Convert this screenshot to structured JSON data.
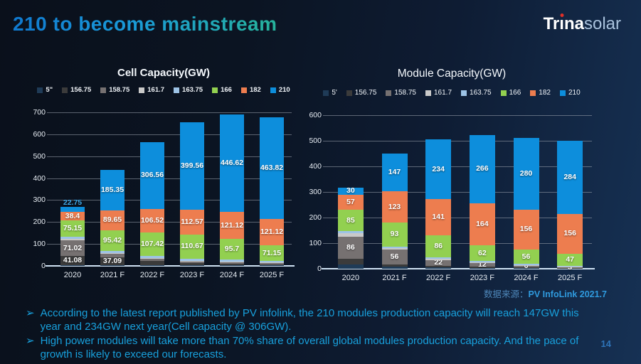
{
  "slide": {
    "title": "210 to become mainstream",
    "page_number": "14",
    "bullet_icon": "➢",
    "logo": {
      "seg1": "Tr",
      "seg2": "ı",
      "seg3": "na",
      "suffix": "solar"
    },
    "source": {
      "prefix": "数据来源：",
      "value": "PV InfoLink 2021.7"
    },
    "bullets": [
      "According to the latest report published by PV infolink, the 210 modules production capacity will reach 147GW this year and 234GW next year(Cell capacity @ 306GW).",
      "High power modules will take more than 70% share of overall global modules production capacity. And the pace of growth is likely to exceed our forecasts."
    ]
  },
  "colors": {
    "accent_blue": "#0d8edc",
    "title_gradient_start": "#1079d0",
    "title_gradient_end": "#27b39b",
    "bullet_text": "#18a0dc",
    "logo_dot_red": "#e03028"
  },
  "chart_data": [
    {
      "type": "bar",
      "stacked": true,
      "title": "Cell Capacity(GW)",
      "categories": [
        "2020",
        "2021 F",
        "2022 F",
        "2023 F",
        "2024 F",
        "2025 F"
      ],
      "ylim": [
        0,
        700
      ],
      "ytick_step": 100,
      "grid": true,
      "legend_position": "top",
      "series": [
        {
          "name": "5\"",
          "color": "#1f3b57",
          "values": [
            3,
            3,
            2,
            2,
            2,
            2
          ],
          "labels": [
            "",
            "",
            "",
            "",
            "",
            ""
          ]
        },
        {
          "name": "156.75",
          "color": "#3b3b3b",
          "values": [
            41.08,
            37.09,
            20,
            11,
            8,
            6
          ],
          "labels": [
            "41.08",
            "37.09",
            "",
            "",
            "",
            ""
          ]
        },
        {
          "name": "158.75",
          "color": "#767171",
          "values": [
            71.02,
            14,
            10,
            8,
            7,
            5
          ],
          "labels": [
            "71.02",
            "",
            "",
            "",
            "",
            ""
          ]
        },
        {
          "name": "161.7",
          "color": "#c9c9c9",
          "values": [
            8,
            5,
            4,
            3,
            3,
            3
          ],
          "labels": [
            "",
            "",
            "",
            "",
            "",
            ""
          ]
        },
        {
          "name": "163.75",
          "color": "#9dc3e6",
          "values": [
            9,
            9,
            9,
            9,
            8,
            6
          ],
          "labels": [
            "",
            "",
            "",
            "",
            "",
            ""
          ]
        },
        {
          "name": "166",
          "color": "#92d050",
          "values": [
            75.15,
            95.42,
            107.42,
            110.67,
            95.7,
            71.15
          ],
          "labels": [
            "75.15",
            "95.42",
            "107.42",
            "110.67",
            "95.7",
            "71.15"
          ]
        },
        {
          "name": "182",
          "color": "#ed7d4f",
          "values": [
            38.4,
            89.65,
            106.52,
            112.57,
            121.12,
            121.12
          ],
          "labels": [
            "38.4",
            "89.65",
            "106.52",
            "112.57",
            "121.12",
            "121.12"
          ]
        },
        {
          "name": "210",
          "color": "#0d8edc",
          "values": [
            22.75,
            185.35,
            306.56,
            399.56,
            446.62,
            463.82
          ],
          "labels": [
            "22.75",
            "185.35",
            "306.56",
            "399.56",
            "446.62",
            "463.82"
          ]
        }
      ]
    },
    {
      "type": "bar",
      "stacked": true,
      "title": "Module Capacity(GW)",
      "categories": [
        "2020",
        "2021 F",
        "2022 F",
        "2023 F",
        "2024 F",
        "2025 F"
      ],
      "ylim": [
        0,
        600
      ],
      "ytick_step": 100,
      "grid": true,
      "legend_position": "top",
      "series": [
        {
          "name": "5'",
          "color": "#1f3b57",
          "values": [
            18,
            8,
            5,
            4,
            3,
            2
          ],
          "labels": [
            "",
            "",
            "",
            "",
            "",
            ""
          ]
        },
        {
          "name": "156.75",
          "color": "#3b3b3b",
          "values": [
            20,
            10,
            7,
            5,
            3,
            2
          ],
          "labels": [
            "",
            "",
            "",
            "",
            "",
            ""
          ]
        },
        {
          "name": "158.75",
          "color": "#767171",
          "values": [
            86,
            56,
            22,
            12,
            6,
            3
          ],
          "labels": [
            "86",
            "56",
            "22",
            "12",
            "6",
            "3"
          ]
        },
        {
          "name": "161.7",
          "color": "#c9c9c9",
          "values": [
            14,
            6,
            4,
            3,
            2,
            1
          ],
          "labels": [
            "",
            "",
            "",
            "",
            "",
            ""
          ]
        },
        {
          "name": "163.75",
          "color": "#9dc3e6",
          "values": [
            8,
            7,
            6,
            6,
            5,
            4
          ],
          "labels": [
            "",
            "",
            "",
            "",
            "",
            ""
          ]
        },
        {
          "name": "166",
          "color": "#92d050",
          "values": [
            85,
            93,
            86,
            62,
            56,
            47
          ],
          "labels": [
            "85",
            "93",
            "86",
            "62",
            "56",
            "47"
          ]
        },
        {
          "name": "182",
          "color": "#ed7d4f",
          "values": [
            57,
            123,
            141,
            164,
            156,
            156
          ],
          "labels": [
            "57",
            "123",
            "141",
            "164",
            "156",
            "156"
          ]
        },
        {
          "name": "210",
          "color": "#0d8edc",
          "values": [
            30,
            147,
            234,
            266,
            280,
            284
          ],
          "labels": [
            "30",
            "147",
            "234",
            "266",
            "280",
            "284"
          ]
        }
      ]
    }
  ]
}
